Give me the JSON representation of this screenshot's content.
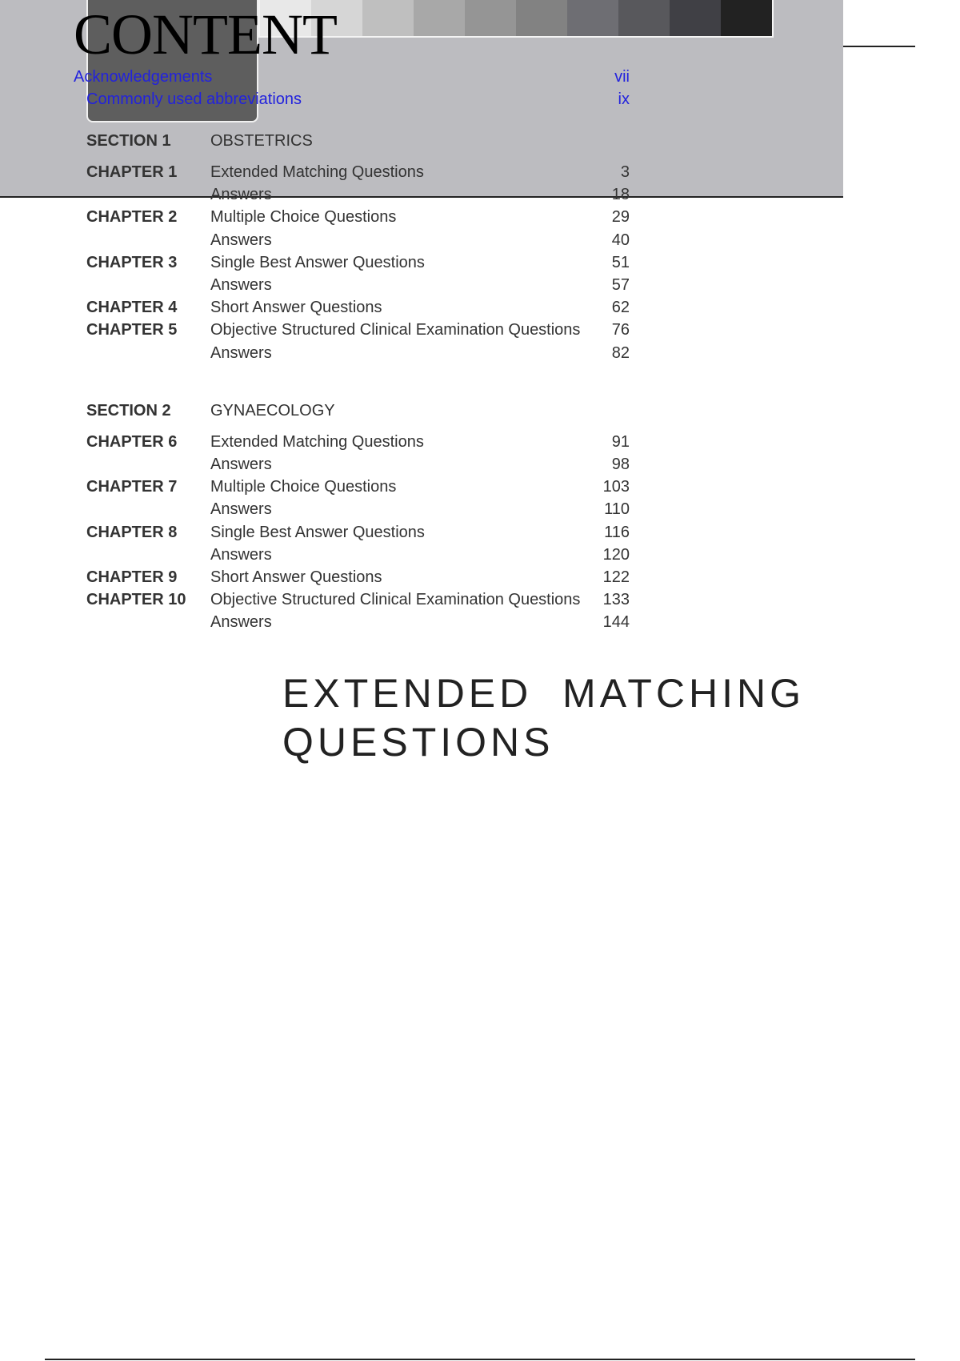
{
  "title": "CONTENT",
  "strip_colors": [
    "#e8e8e8",
    "#d6d6d6",
    "#bfbfbf",
    "#a8a8a8",
    "#959595",
    "#828282",
    "#6e6e73",
    "#58585c",
    "#404045",
    "#222222"
  ],
  "front_matter": [
    {
      "text": "Acknowledgements",
      "page": "vii"
    },
    {
      "text": "Commonly used abbreviations",
      "page": "ix"
    }
  ],
  "sections": [
    {
      "label": "SECTION 1",
      "title": "OBSTETRICS",
      "rows": [
        {
          "chapter": "CHAPTER 1",
          "text": "Extended Matching Questions",
          "page": "3"
        },
        {
          "chapter": "",
          "text": "Answers",
          "page": "18"
        },
        {
          "chapter": "CHAPTER 2",
          "text": "Multiple Choice Questions",
          "page": "29"
        },
        {
          "chapter": "",
          "text": "Answers",
          "page": "40"
        },
        {
          "chapter": "CHAPTER 3",
          "text": "Single Best Answer Questions",
          "page": "51"
        },
        {
          "chapter": "",
          "text": "Answers",
          "page": "57"
        },
        {
          "chapter": "CHAPTER 4",
          "text": "Short Answer Questions",
          "page": "62"
        },
        {
          "chapter": "CHAPTER 5",
          "text": "Objective Structured Clinical Examination Questions",
          "page": "76"
        },
        {
          "chapter": "",
          "text": "Answers",
          "page": "82"
        }
      ]
    },
    {
      "label": "SECTION 2",
      "title": "GYNAECOLOGY",
      "rows": [
        {
          "chapter": "CHAPTER 6",
          "text": "Extended Matching Questions",
          "page": "91"
        },
        {
          "chapter": "",
          "text": "Answers",
          "page": "98"
        },
        {
          "chapter": "CHAPTER 7",
          "text": "Multiple Choice Questions",
          "page": "103"
        },
        {
          "chapter": "",
          "text": "Answers",
          "page": "110"
        },
        {
          "chapter": "CHAPTER 8",
          "text": "Single Best Answer Questions",
          "page": "116"
        },
        {
          "chapter": "",
          "text": "Answers",
          "page": "120"
        },
        {
          "chapter": "CHAPTER 9",
          "text": "Short Answer Questions",
          "page": "122"
        },
        {
          "chapter": "CHAPTER 10",
          "text": "Objective Structured Clinical Examination Questions",
          "page": "133"
        },
        {
          "chapter": "",
          "text": "Answers",
          "page": "144"
        }
      ]
    }
  ],
  "heading": {
    "line1": "EXTENDED  MATCHING",
    "line2": "QUESTIONS"
  }
}
